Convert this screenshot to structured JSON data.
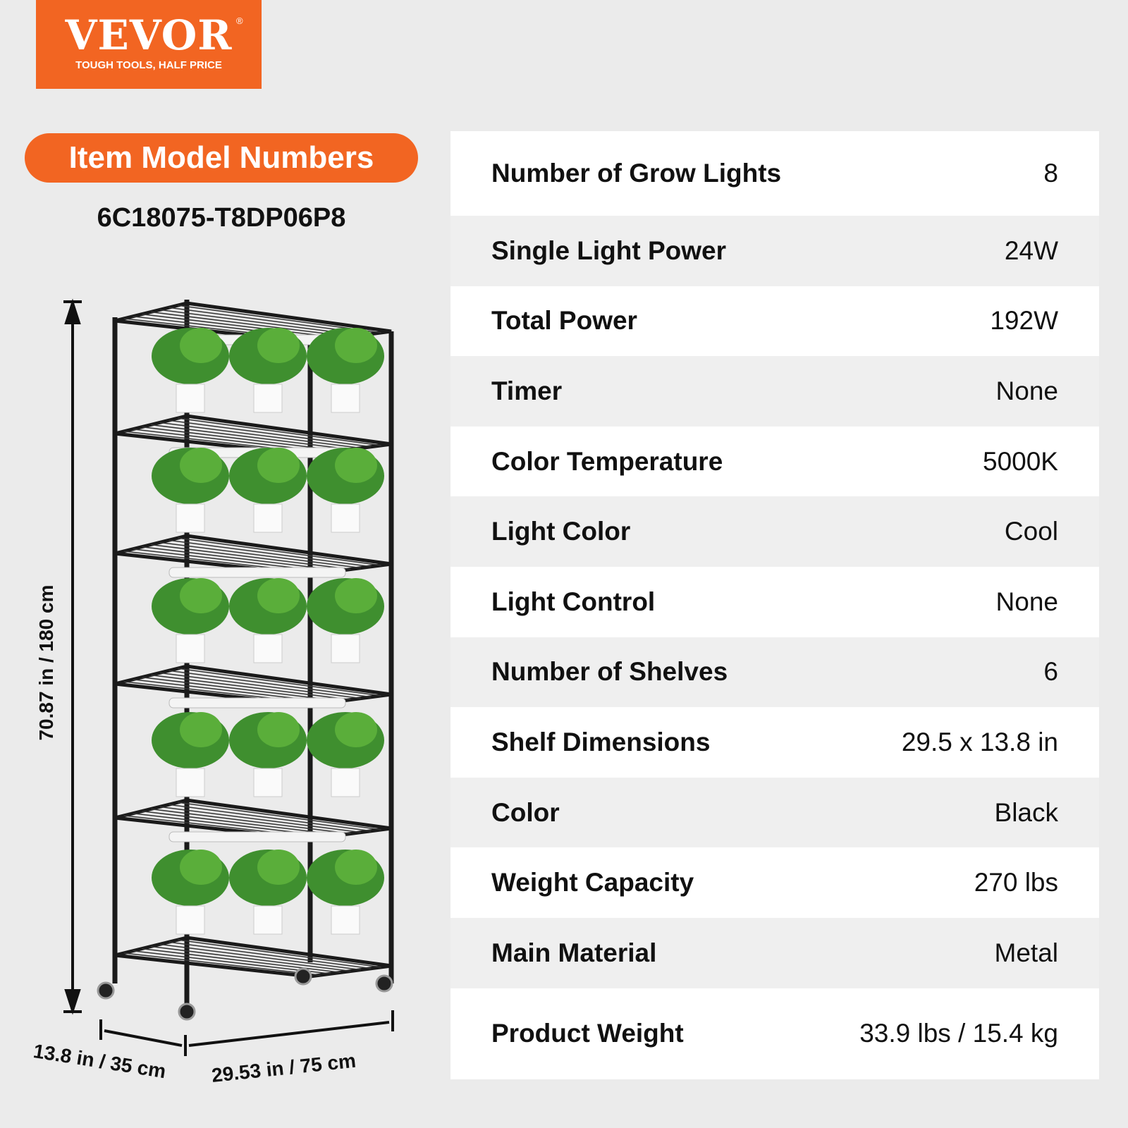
{
  "logo": {
    "brand": "VEVOR",
    "registered": "®",
    "tagline": "TOUGH TOOLS, HALF PRICE",
    "color": "#f26522"
  },
  "model": {
    "heading": "Item Model Numbers",
    "number": "6C18075-T8DP06P8"
  },
  "dimensions": {
    "height": "70.87 in / 180 cm",
    "depth": "13.8 in / 35 cm",
    "width": "29.53 in / 75 cm"
  },
  "specs": [
    {
      "label": "Number of Grow Lights",
      "value": "8"
    },
    {
      "label": "Single Light Power",
      "value": "24W"
    },
    {
      "label": "Total Power",
      "value": "192W"
    },
    {
      "label": "Timer",
      "value": "None"
    },
    {
      "label": "Color Temperature",
      "value": "5000K"
    },
    {
      "label": "Light Color",
      "value": "Cool"
    },
    {
      "label": "Light Control",
      "value": "None"
    },
    {
      "label": "Number of Shelves",
      "value": "6"
    },
    {
      "label": "Shelf Dimensions",
      "value": "29.5  x 13.8 in"
    },
    {
      "label": "Color",
      "value": "Black"
    },
    {
      "label": "Weight Capacity",
      "value": "270 lbs"
    },
    {
      "label": "Main Material",
      "value": "Metal"
    },
    {
      "label": "Product Weight",
      "value": "33.9 lbs / 15.4 kg"
    }
  ]
}
